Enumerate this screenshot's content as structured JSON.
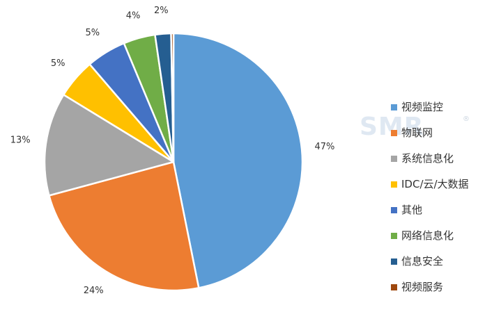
{
  "chart_data": {
    "type": "pie",
    "title": "",
    "start_angle_deg": 0,
    "direction": "clockwise",
    "legend_position": "right",
    "slices": [
      {
        "label": "视频监控",
        "value": 47,
        "pct_label": "47%",
        "color": "#5B9BD5"
      },
      {
        "label": "物联网",
        "value": 24,
        "pct_label": "24%",
        "color": "#ED7D31"
      },
      {
        "label": "系统信息化",
        "value": 13,
        "pct_label": "13%",
        "color": "#A5A5A5"
      },
      {
        "label": "IDC/云/大数据",
        "value": 5,
        "pct_label": "5%",
        "color": "#FFC000"
      },
      {
        "label": "其他",
        "value": 5,
        "pct_label": "5%",
        "color": "#4472C4"
      },
      {
        "label": "网络信息化",
        "value": 4,
        "pct_label": "4%",
        "color": "#70AD47"
      },
      {
        "label": "信息安全",
        "value": 2,
        "pct_label": "2%",
        "color": "#255E91"
      },
      {
        "label": "视频服务",
        "value": 0.3,
        "pct_label": "",
        "color": "#9E480E"
      }
    ]
  },
  "watermark": {
    "text": "SMR",
    "mark": "®"
  }
}
